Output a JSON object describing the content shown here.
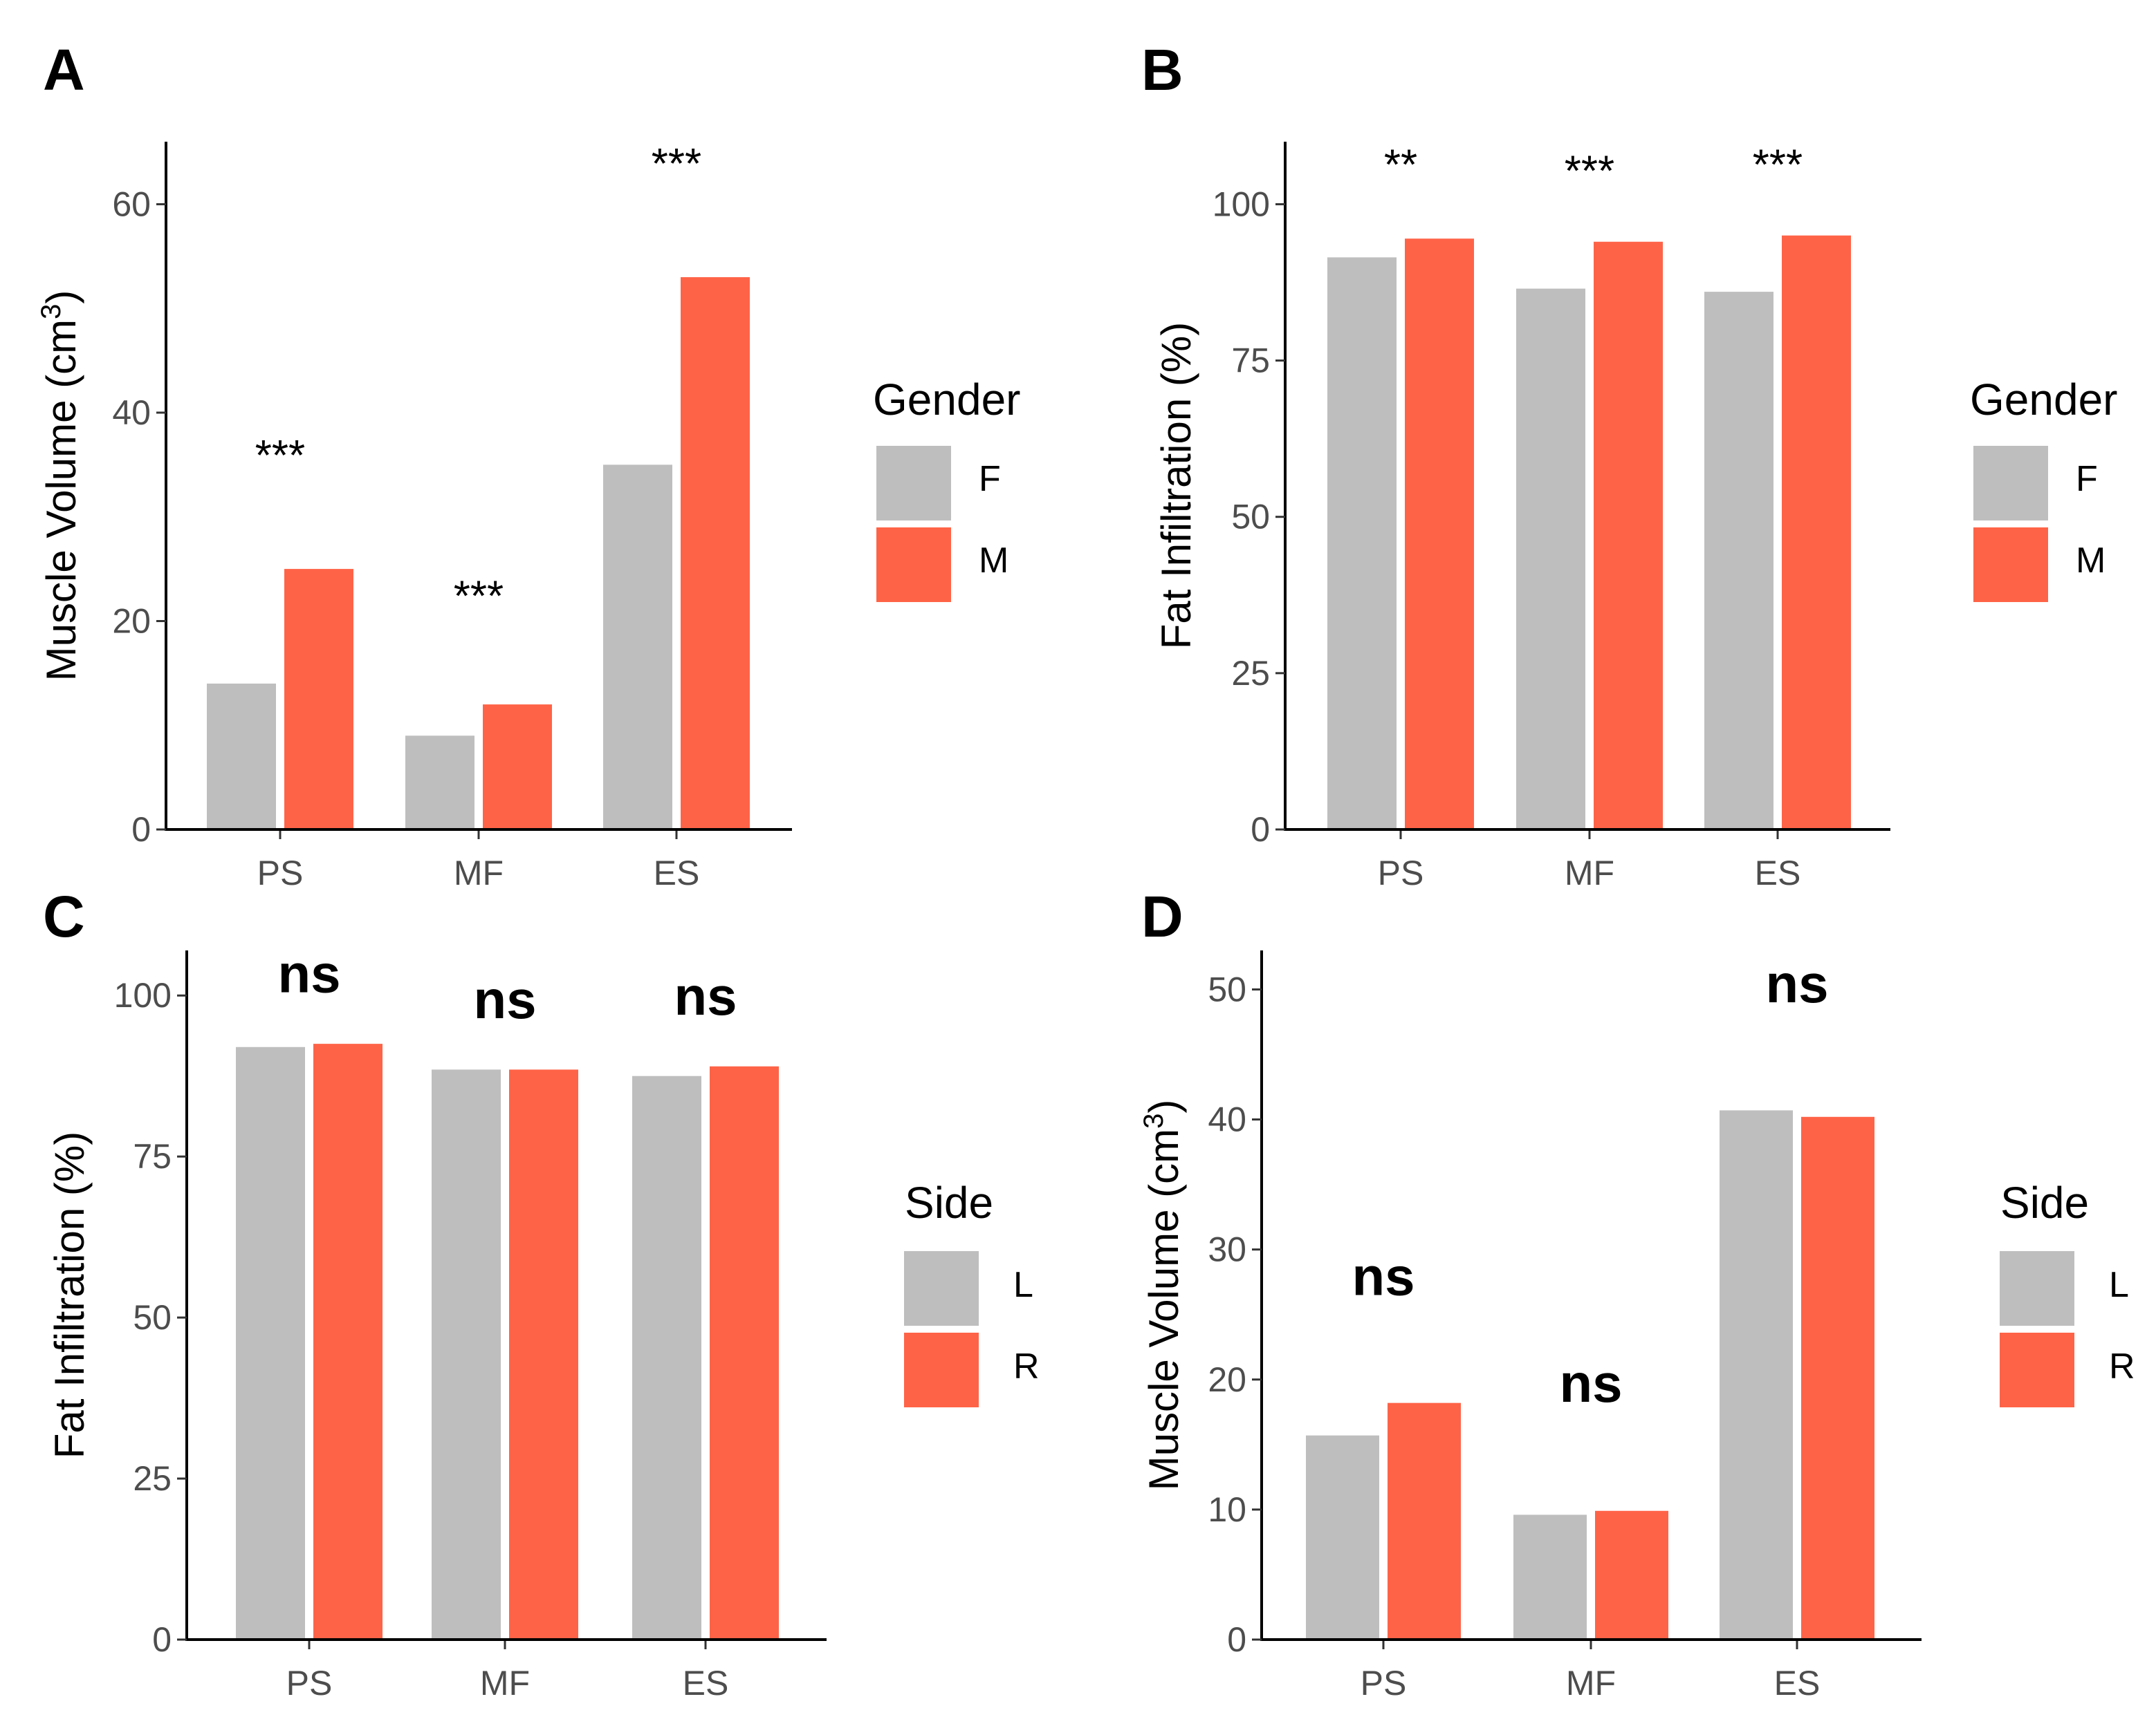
{
  "colors": {
    "group1": "#bebebe",
    "group2": "#ff6347"
  },
  "chart_data": [
    {
      "panel": "A",
      "type": "bar",
      "categories": [
        "PS",
        "MF",
        "ES"
      ],
      "series": [
        {
          "name": "F",
          "values": [
            14,
            9,
            35
          ]
        },
        {
          "name": "M",
          "values": [
            25,
            12,
            53
          ]
        }
      ],
      "significance": [
        "***",
        "***",
        "***"
      ],
      "significance_y": [
        34.5,
        21,
        62.5
      ],
      "ylabel_main": "Muscle Volume (cm",
      "ylabel_sup": "3",
      "ylabel_end": ")",
      "xlabel": "",
      "ylim": [
        0,
        66
      ],
      "yticks": [
        0,
        20,
        40,
        60
      ],
      "legend_title": "Gender"
    },
    {
      "panel": "B",
      "type": "bar",
      "categories": [
        "PS",
        "MF",
        "ES"
      ],
      "series": [
        {
          "name": "F",
          "values": [
            91.5,
            86.5,
            86
          ]
        },
        {
          "name": "M",
          "values": [
            94.5,
            94,
            95
          ]
        }
      ],
      "significance": [
        "**",
        "***",
        "***"
      ],
      "significance_y": [
        104,
        103,
        104
      ],
      "ylabel_main": "Fat Infiltration (%)",
      "ylabel_sup": "",
      "ylabel_end": "",
      "xlabel": "",
      "ylim": [
        0,
        110
      ],
      "yticks": [
        0,
        25,
        50,
        75,
        100
      ],
      "legend_title": "Gender"
    },
    {
      "panel": "C",
      "type": "bar",
      "categories": [
        "PS",
        "MF",
        "ES"
      ],
      "series": [
        {
          "name": "L",
          "values": [
            92,
            88.5,
            87.5
          ]
        },
        {
          "name": "R",
          "values": [
            92.5,
            88.5,
            89
          ]
        }
      ],
      "significance": [
        "ns",
        "ns",
        "ns"
      ],
      "significance_y": [
        100.5,
        96.5,
        97
      ],
      "ylabel_main": "Fat Infiltration (%)",
      "ylabel_sup": "",
      "ylabel_end": "",
      "xlabel": "",
      "ylim": [
        0,
        107
      ],
      "yticks": [
        0,
        25,
        50,
        75,
        100
      ],
      "legend_title": "Side"
    },
    {
      "panel": "D",
      "type": "bar",
      "categories": [
        "PS",
        "MF",
        "ES"
      ],
      "series": [
        {
          "name": "L",
          "values": [
            15.7,
            9.6,
            40.7
          ]
        },
        {
          "name": "R",
          "values": [
            18.2,
            9.9,
            40.2
          ]
        }
      ],
      "significance": [
        "ns",
        "ns",
        "ns"
      ],
      "significance_y": [
        26.5,
        18.3,
        49
      ],
      "ylabel_main": "Muscle Volume (cm",
      "ylabel_sup": "3",
      "ylabel_end": ")",
      "xlabel": "",
      "ylim": [
        0,
        53
      ],
      "yticks": [
        0,
        10,
        20,
        30,
        40,
        50
      ],
      "legend_title": "Side"
    }
  ]
}
